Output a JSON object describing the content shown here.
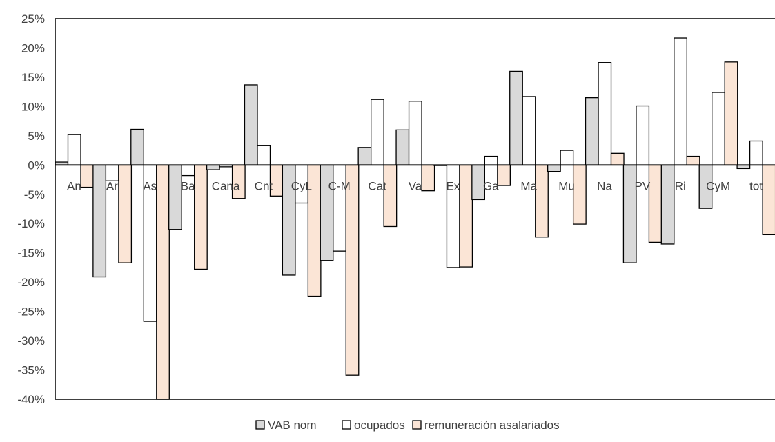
{
  "chart_data": {
    "type": "bar",
    "categories": [
      "An",
      "Ar",
      "As",
      "Ba",
      "Cana",
      "Cnt",
      "CyL",
      "C-M",
      "Cat",
      "Va",
      "Ex",
      "Ga",
      "Ma",
      "Mu",
      "Na",
      "PV",
      "Ri",
      "CyM",
      "tot"
    ],
    "series": [
      {
        "name": "VAB nom",
        "color": "#d9d9d9",
        "values": [
          0.5,
          -19.1,
          6.1,
          -11.0,
          -0.8,
          13.7,
          -18.8,
          -16.3,
          3.0,
          6.0,
          0.0,
          -5.9,
          16.0,
          -1.1,
          11.5,
          -16.7,
          -13.5,
          -7.4,
          -0.6
        ]
      },
      {
        "name": "ocupados",
        "color": "#ffffff",
        "values": [
          5.2,
          -2.7,
          -26.7,
          -1.8,
          -0.3,
          3.3,
          -6.5,
          -14.7,
          11.2,
          10.9,
          -17.5,
          1.5,
          11.7,
          2.5,
          17.5,
          10.1,
          21.7,
          12.4,
          4.1
        ]
      },
      {
        "name": "remuneración asalariados",
        "color": "#fbe5d6",
        "values": [
          -3.8,
          -16.7,
          -40.0,
          -17.8,
          -5.7,
          -5.3,
          -22.4,
          -35.9,
          -10.5,
          -4.4,
          -17.4,
          -3.5,
          -12.3,
          -10.1,
          2.0,
          -13.2,
          1.5,
          17.6,
          -11.9
        ]
      }
    ],
    "ylim": [
      -40,
      25
    ],
    "yticks": [
      25,
      20,
      15,
      10,
      5,
      0,
      -5,
      -10,
      -15,
      -20,
      -25,
      -30,
      -35,
      -40
    ],
    "ytick_format": "percent",
    "grid": false,
    "legend_position": "bottom-center"
  }
}
